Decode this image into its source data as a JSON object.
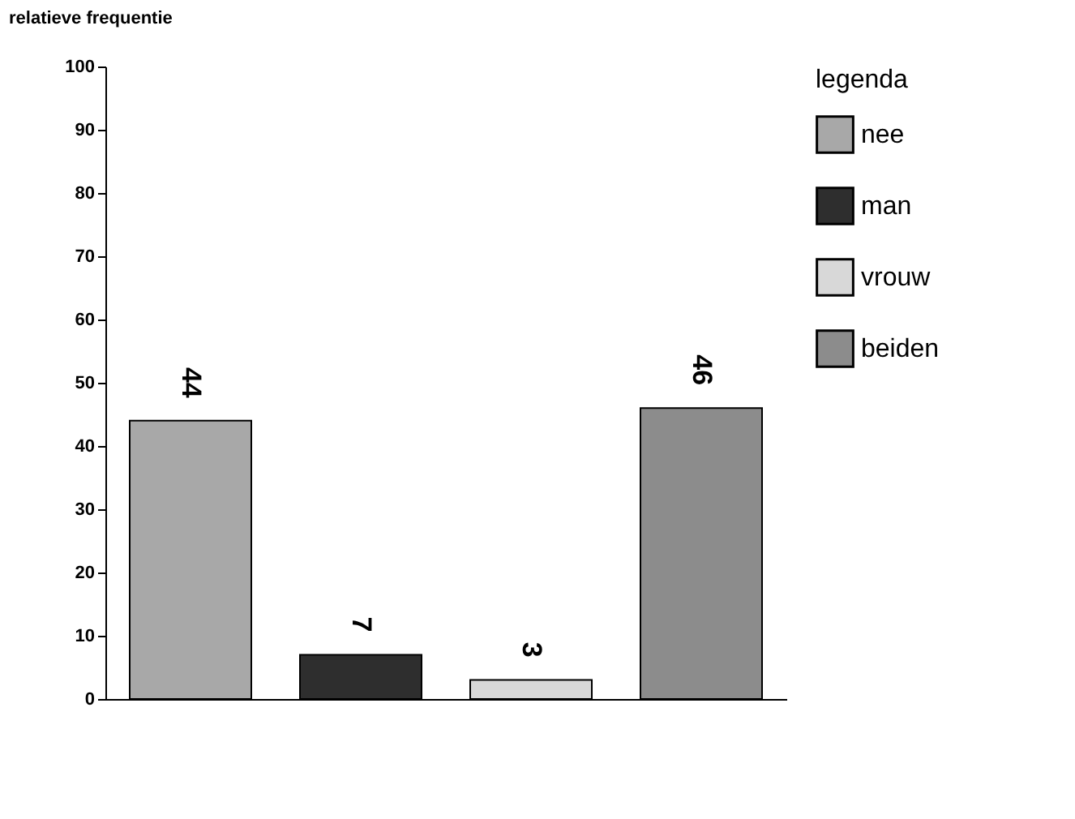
{
  "chart_data": {
    "type": "bar",
    "ylabel": "relatieve frequentie",
    "legend_title": "legenda",
    "categories": [
      null,
      null,
      null,
      null
    ],
    "series": [
      {
        "name": "nee",
        "color": "#a8a8a8",
        "values": [
          44,
          null,
          null,
          null
        ]
      },
      {
        "name": "man",
        "color": "#2e2e2e",
        "values": [
          null,
          7,
          null,
          null
        ]
      },
      {
        "name": "vrouw",
        "color": "#d8d8d8",
        "values": [
          null,
          null,
          3,
          null
        ]
      },
      {
        "name": "beiden",
        "color": "#8c8c8c",
        "values": [
          null,
          null,
          null,
          46
        ]
      }
    ],
    "ylim": [
      0,
      100
    ],
    "yticks": [
      0,
      10,
      20,
      30,
      40,
      50,
      60,
      70,
      80,
      90,
      100
    ],
    "data_labels": true,
    "legend": "right",
    "tick_labels": "y",
    "grid": false
  }
}
